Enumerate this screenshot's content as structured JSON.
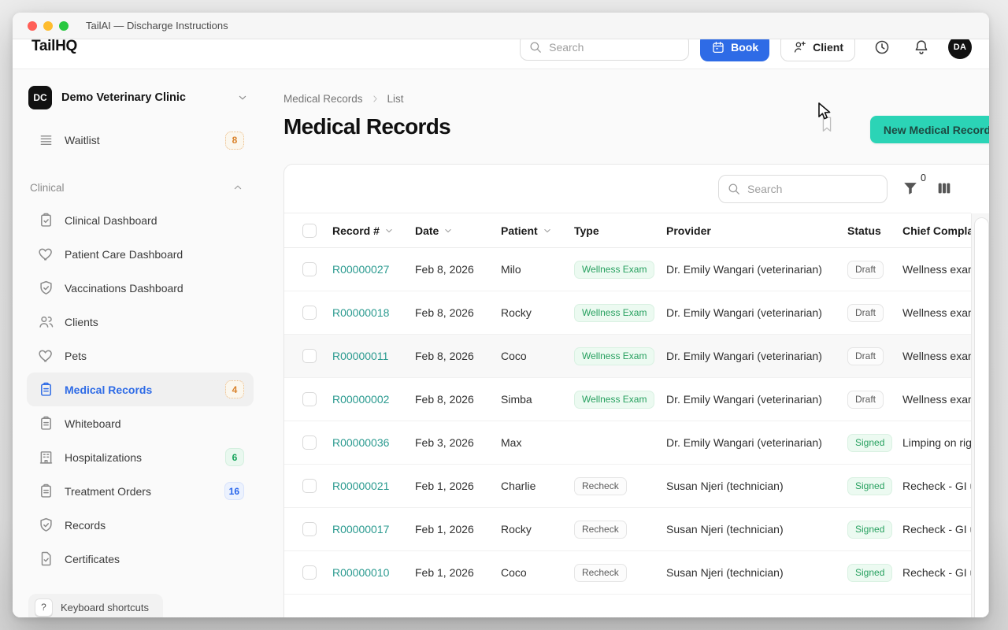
{
  "window": {
    "title": "TailAI — Discharge Instructions"
  },
  "header": {
    "logo": "TailHQ",
    "search_placeholder": "Search",
    "book_label": "Book",
    "client_label": "Client",
    "avatar_initials": "DA"
  },
  "sidebar": {
    "org": {
      "initials": "DC",
      "name": "Demo Veterinary Clinic"
    },
    "waitlist": {
      "label": "Waitlist",
      "badge": "8",
      "badge_style": "orange",
      "icon": "waitlist"
    },
    "section_label": "Clinical",
    "items": [
      {
        "label": "Clinical Dashboard",
        "icon": "clipboard-check"
      },
      {
        "label": "Patient Care Dashboard",
        "icon": "heart"
      },
      {
        "label": "Vaccinations Dashboard",
        "icon": "shield-check"
      },
      {
        "label": "Clients",
        "icon": "users"
      },
      {
        "label": "Pets",
        "icon": "heart"
      },
      {
        "label": "Medical Records",
        "icon": "clipboard",
        "badge": "4",
        "badge_style": "orange",
        "active": true
      },
      {
        "label": "Whiteboard",
        "icon": "clipboard"
      },
      {
        "label": "Hospitalizations",
        "icon": "building",
        "badge": "6",
        "badge_style": "green"
      },
      {
        "label": "Treatment Orders",
        "icon": "clipboard",
        "badge": "16",
        "badge_style": "blue"
      },
      {
        "label": "Records",
        "icon": "shield-check"
      },
      {
        "label": "Certificates",
        "icon": "document-check"
      }
    ],
    "footer": {
      "key": "?",
      "label": "Keyboard shortcuts"
    }
  },
  "main": {
    "breadcrumb": {
      "first": "Medical Records",
      "second": "List"
    },
    "title": "Medical Records",
    "new_button_label": "New Medical Record",
    "table": {
      "search_placeholder": "Search",
      "filter_count": "0",
      "columns": [
        {
          "label": "Record #",
          "sortable": true
        },
        {
          "label": "Date",
          "sortable": true
        },
        {
          "label": "Patient",
          "sortable": true
        },
        {
          "label": "Type",
          "sortable": false
        },
        {
          "label": "Provider",
          "sortable": false
        },
        {
          "label": "Status",
          "sortable": false
        },
        {
          "label": "Chief Complaint",
          "sortable": false
        }
      ],
      "rows": [
        {
          "record": "R00000027",
          "date": "Feb 8, 2026",
          "patient": "Milo",
          "type": "Wellness Exam",
          "type_style": "green",
          "provider": "Dr. Emily Wangari (veterinarian)",
          "status": "Draft",
          "status_style": "outline",
          "complaint": "Wellness exam",
          "highlighted": false
        },
        {
          "record": "R00000018",
          "date": "Feb 8, 2026",
          "patient": "Rocky",
          "type": "Wellness Exam",
          "type_style": "green",
          "provider": "Dr. Emily Wangari (veterinarian)",
          "status": "Draft",
          "status_style": "outline",
          "complaint": "Wellness exam",
          "highlighted": false
        },
        {
          "record": "R00000011",
          "date": "Feb 8, 2026",
          "patient": "Coco",
          "type": "Wellness Exam",
          "type_style": "green",
          "provider": "Dr. Emily Wangari (veterinarian)",
          "status": "Draft",
          "status_style": "outline",
          "complaint": "Wellness exam",
          "highlighted": true
        },
        {
          "record": "R00000002",
          "date": "Feb 8, 2026",
          "patient": "Simba",
          "type": "Wellness Exam",
          "type_style": "green",
          "provider": "Dr. Emily Wangari (veterinarian)",
          "status": "Draft",
          "status_style": "outline",
          "complaint": "Wellness exam",
          "highlighted": false
        },
        {
          "record": "R00000036",
          "date": "Feb 3, 2026",
          "patient": "Max",
          "type": "",
          "type_style": "",
          "provider": "Dr. Emily Wangari (veterinarian)",
          "status": "Signed",
          "status_style": "green",
          "complaint": "Limping on rig",
          "highlighted": false
        },
        {
          "record": "R00000021",
          "date": "Feb 1, 2026",
          "patient": "Charlie",
          "type": "Recheck",
          "type_style": "outline",
          "provider": "Susan Njeri (technician)",
          "status": "Signed",
          "status_style": "green",
          "complaint": "Recheck - GI u",
          "highlighted": false
        },
        {
          "record": "R00000017",
          "date": "Feb 1, 2026",
          "patient": "Rocky",
          "type": "Recheck",
          "type_style": "outline",
          "provider": "Susan Njeri (technician)",
          "status": "Signed",
          "status_style": "green",
          "complaint": "Recheck - GI u",
          "highlighted": false
        },
        {
          "record": "R00000010",
          "date": "Feb 1, 2026",
          "patient": "Coco",
          "type": "Recheck",
          "type_style": "outline",
          "provider": "Susan Njeri (technician)",
          "status": "Signed",
          "status_style": "green",
          "complaint": "Recheck - GI u",
          "highlighted": false
        }
      ]
    }
  },
  "colors": {
    "accent_teal": "#2bd4b6",
    "accent_blue": "#2e6be6",
    "link_teal": "#2a9a8f",
    "badge_orange": "#d9822b",
    "badge_green": "#17a45c",
    "badge_blue": "#2563eb",
    "status_green": "#27a05f"
  }
}
